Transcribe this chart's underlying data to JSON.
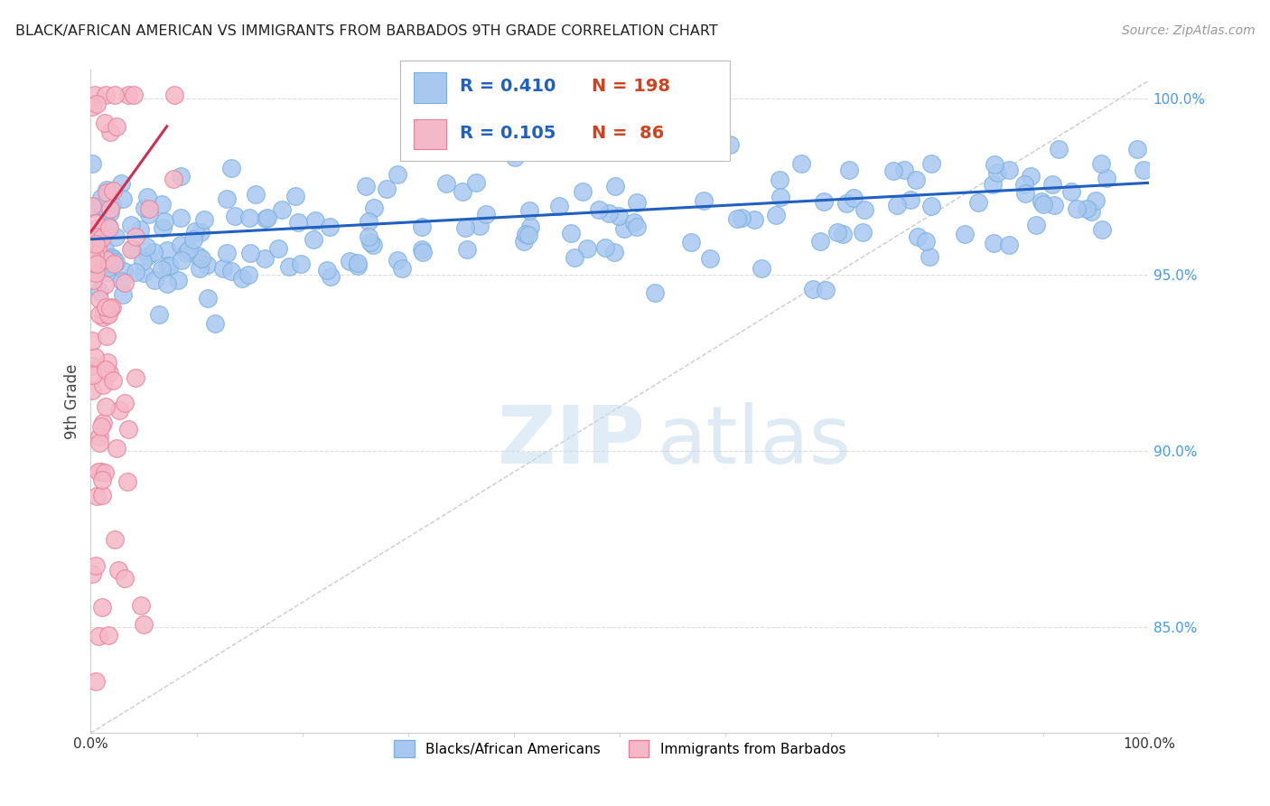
{
  "title": "BLACK/AFRICAN AMERICAN VS IMMIGRANTS FROM BARBADOS 9TH GRADE CORRELATION CHART",
  "source": "Source: ZipAtlas.com",
  "ylabel": "9th Grade",
  "ylabel_right_labels": [
    "100.0%",
    "95.0%",
    "90.0%",
    "85.0%"
  ],
  "ylabel_right_values": [
    1.0,
    0.95,
    0.9,
    0.85
  ],
  "blue_R": 0.41,
  "blue_N": 198,
  "pink_R": 0.105,
  "pink_N": 86,
  "blue_color": "#a8c8f0",
  "blue_edge_color": "#7ab0e0",
  "pink_color": "#f5b8c8",
  "pink_edge_color": "#e8809a",
  "blue_line_color": "#2060c0",
  "pink_line_color": "#cc3050",
  "legend_box_blue": "#a8c8f0",
  "legend_box_pink": "#f5b8c8",
  "legend_R_color": "#2060c0",
  "legend_N_color": "#cc4422",
  "watermark_color": "#c8dff0",
  "background_color": "#ffffff",
  "xmin": 0.0,
  "xmax": 1.0,
  "ymin": 0.82,
  "ymax": 1.008
}
